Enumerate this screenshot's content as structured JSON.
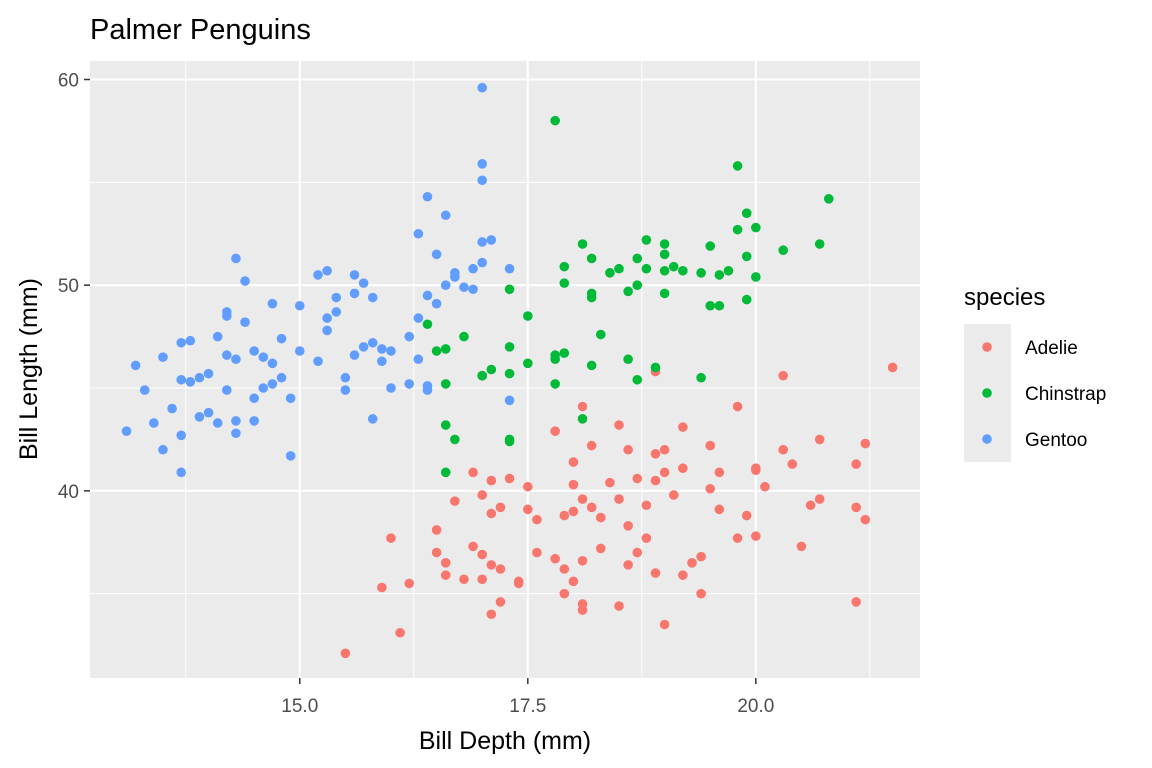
{
  "chart_data": {
    "type": "scatter",
    "title": "Palmer Penguins",
    "xlabel": "Bill Depth (mm)",
    "ylabel": "Bill Length (mm)",
    "xlim": [
      12.7,
      21.8
    ],
    "ylim": [
      30.9,
      60.9
    ],
    "x_ticks": [
      15.0,
      17.5,
      20.0
    ],
    "x_tick_labels": [
      "15.0",
      "17.5",
      "20.0"
    ],
    "x_minor_ticks": [
      13.75,
      16.25,
      18.75,
      21.25
    ],
    "y_ticks": [
      40,
      50,
      60
    ],
    "y_tick_labels": [
      "40",
      "50",
      "60"
    ],
    "y_minor_ticks": [
      35,
      45,
      55
    ],
    "panel_background": "#ebebeb",
    "grid": true,
    "legend": {
      "title": "species",
      "position": "right",
      "entries": [
        {
          "name": "Adelie",
          "color": "#f8766d"
        },
        {
          "name": "Chinstrap",
          "color": "#00ba38"
        },
        {
          "name": "Gentoo",
          "color": "#619cff"
        }
      ]
    },
    "series": [
      {
        "name": "Adelie",
        "color": "#f8766d",
        "points": [
          [
            15.5,
            32.1
          ],
          [
            16.1,
            33.1
          ],
          [
            17.1,
            34.0
          ],
          [
            17.2,
            34.6
          ],
          [
            18.1,
            34.5
          ],
          [
            18.5,
            34.4
          ],
          [
            19.0,
            33.5
          ],
          [
            19.4,
            35.0
          ],
          [
            21.1,
            34.6
          ],
          [
            15.9,
            35.3
          ],
          [
            16.2,
            35.5
          ],
          [
            16.6,
            35.9
          ],
          [
            16.8,
            35.7
          ],
          [
            17.0,
            35.7
          ],
          [
            17.4,
            35.5
          ],
          [
            17.4,
            35.6
          ],
          [
            17.9,
            35.0
          ],
          [
            18.0,
            35.6
          ],
          [
            18.1,
            34.2
          ],
          [
            16.0,
            37.7
          ],
          [
            16.5,
            38.1
          ],
          [
            16.5,
            37.0
          ],
          [
            16.6,
            36.5
          ],
          [
            16.9,
            37.3
          ],
          [
            17.0,
            36.9
          ],
          [
            17.1,
            36.4
          ],
          [
            17.2,
            36.2
          ],
          [
            17.1,
            38.9
          ],
          [
            17.6,
            37.0
          ],
          [
            17.8,
            36.7
          ],
          [
            17.9,
            36.2
          ],
          [
            18.1,
            36.6
          ],
          [
            18.3,
            37.2
          ],
          [
            18.6,
            36.4
          ],
          [
            18.7,
            37.0
          ],
          [
            18.8,
            37.7
          ],
          [
            18.9,
            36.0
          ],
          [
            19.2,
            35.9
          ],
          [
            19.3,
            36.5
          ],
          [
            19.4,
            36.8
          ],
          [
            19.8,
            37.7
          ],
          [
            20.0,
            37.8
          ],
          [
            20.5,
            37.3
          ],
          [
            16.7,
            39.5
          ],
          [
            16.9,
            40.9
          ],
          [
            17.0,
            39.8
          ],
          [
            17.1,
            40.5
          ],
          [
            17.2,
            39.2
          ],
          [
            17.3,
            40.6
          ],
          [
            17.5,
            40.2
          ],
          [
            17.5,
            39.1
          ],
          [
            17.6,
            38.6
          ],
          [
            17.9,
            38.8
          ],
          [
            18.0,
            39.0
          ],
          [
            18.0,
            40.3
          ],
          [
            18.1,
            39.6
          ],
          [
            18.2,
            39.2
          ],
          [
            18.3,
            38.7
          ],
          [
            18.4,
            40.4
          ],
          [
            18.5,
            39.6
          ],
          [
            18.6,
            38.3
          ],
          [
            18.7,
            40.6
          ],
          [
            18.8,
            39.3
          ],
          [
            18.9,
            40.5
          ],
          [
            19.0,
            40.9
          ],
          [
            19.1,
            39.8
          ],
          [
            19.2,
            41.1
          ],
          [
            19.5,
            40.1
          ],
          [
            19.6,
            39.1
          ],
          [
            19.9,
            38.8
          ],
          [
            20.0,
            41.0
          ],
          [
            20.1,
            40.2
          ],
          [
            20.6,
            39.3
          ],
          [
            20.7,
            39.6
          ],
          [
            21.1,
            39.2
          ],
          [
            21.2,
            38.6
          ],
          [
            17.8,
            42.9
          ],
          [
            18.0,
            41.4
          ],
          [
            18.2,
            42.2
          ],
          [
            18.5,
            43.2
          ],
          [
            18.6,
            42.0
          ],
          [
            18.9,
            41.8
          ],
          [
            19.0,
            42.0
          ],
          [
            19.2,
            43.1
          ],
          [
            19.5,
            42.2
          ],
          [
            19.6,
            40.9
          ],
          [
            19.8,
            44.1
          ],
          [
            20.0,
            41.1
          ],
          [
            20.3,
            42.0
          ],
          [
            20.4,
            41.3
          ],
          [
            20.7,
            42.5
          ],
          [
            21.1,
            41.3
          ],
          [
            21.2,
            42.3
          ],
          [
            21.5,
            46.0
          ],
          [
            20.3,
            45.6
          ],
          [
            18.1,
            44.1
          ],
          [
            18.9,
            45.8
          ]
        ]
      },
      {
        "name": "Chinstrap",
        "color": "#00ba38",
        "points": [
          [
            16.4,
            48.1
          ],
          [
            16.5,
            46.8
          ],
          [
            16.6,
            46.9
          ],
          [
            16.6,
            45.2
          ],
          [
            16.6,
            43.2
          ],
          [
            16.6,
            40.9
          ],
          [
            16.7,
            42.5
          ],
          [
            16.8,
            47.5
          ],
          [
            17.0,
            45.6
          ],
          [
            17.0,
            45.6
          ],
          [
            17.1,
            45.9
          ],
          [
            17.3,
            49.8
          ],
          [
            17.3,
            47.0
          ],
          [
            17.3,
            45.7
          ],
          [
            17.3,
            42.5
          ],
          [
            17.3,
            42.4
          ],
          [
            17.5,
            48.5
          ],
          [
            17.5,
            46.2
          ],
          [
            17.8,
            58.0
          ],
          [
            17.8,
            46.6
          ],
          [
            17.8,
            46.4
          ],
          [
            17.8,
            45.2
          ],
          [
            17.9,
            50.9
          ],
          [
            17.9,
            50.1
          ],
          [
            17.9,
            46.7
          ],
          [
            18.1,
            52.0
          ],
          [
            18.1,
            43.5
          ],
          [
            18.2,
            51.3
          ],
          [
            18.2,
            49.6
          ],
          [
            18.2,
            49.4
          ],
          [
            18.2,
            46.1
          ],
          [
            18.3,
            47.6
          ],
          [
            18.4,
            50.6
          ],
          [
            18.5,
            50.8
          ],
          [
            18.6,
            49.7
          ],
          [
            18.6,
            46.4
          ],
          [
            18.7,
            51.3
          ],
          [
            18.7,
            50.0
          ],
          [
            18.7,
            45.4
          ],
          [
            18.8,
            52.2
          ],
          [
            18.8,
            50.8
          ],
          [
            18.9,
            46.0
          ],
          [
            19.0,
            52.0
          ],
          [
            19.0,
            51.5
          ],
          [
            19.0,
            50.7
          ],
          [
            19.0,
            49.6
          ],
          [
            19.1,
            50.9
          ],
          [
            19.2,
            50.7
          ],
          [
            19.4,
            50.6
          ],
          [
            19.4,
            45.5
          ],
          [
            19.5,
            51.9
          ],
          [
            19.5,
            49.0
          ],
          [
            19.6,
            50.5
          ],
          [
            19.6,
            49.0
          ],
          [
            19.7,
            50.7
          ],
          [
            19.8,
            55.8
          ],
          [
            19.8,
            52.7
          ],
          [
            19.9,
            53.5
          ],
          [
            19.9,
            51.4
          ],
          [
            19.9,
            49.3
          ],
          [
            20.0,
            52.8
          ],
          [
            20.0,
            50.4
          ],
          [
            20.3,
            51.7
          ],
          [
            20.7,
            52.0
          ],
          [
            20.8,
            54.2
          ]
        ]
      },
      {
        "name": "Gentoo",
        "color": "#619cff",
        "points": [
          [
            13.1,
            42.9
          ],
          [
            13.2,
            46.1
          ],
          [
            13.3,
            44.9
          ],
          [
            13.4,
            43.3
          ],
          [
            13.5,
            46.5
          ],
          [
            13.5,
            42.0
          ],
          [
            13.6,
            44.0
          ],
          [
            13.7,
            47.2
          ],
          [
            13.7,
            45.4
          ],
          [
            13.7,
            42.7
          ],
          [
            13.7,
            40.9
          ],
          [
            13.8,
            47.3
          ],
          [
            13.8,
            45.3
          ],
          [
            13.9,
            45.5
          ],
          [
            13.9,
            43.6
          ],
          [
            14.0,
            45.7
          ],
          [
            14.0,
            43.8
          ],
          [
            14.1,
            43.3
          ],
          [
            14.1,
            47.5
          ],
          [
            14.2,
            48.7
          ],
          [
            14.2,
            48.5
          ],
          [
            14.2,
            46.6
          ],
          [
            14.2,
            44.9
          ],
          [
            14.3,
            51.3
          ],
          [
            14.3,
            46.4
          ],
          [
            14.3,
            43.4
          ],
          [
            14.3,
            42.8
          ],
          [
            14.4,
            50.2
          ],
          [
            14.4,
            48.2
          ],
          [
            14.5,
            46.8
          ],
          [
            14.5,
            44.5
          ],
          [
            14.5,
            43.4
          ],
          [
            14.6,
            46.5
          ],
          [
            14.6,
            45.0
          ],
          [
            14.7,
            49.1
          ],
          [
            14.7,
            46.2
          ],
          [
            14.7,
            45.2
          ],
          [
            14.8,
            47.4
          ],
          [
            14.8,
            45.5
          ],
          [
            14.9,
            44.5
          ],
          [
            14.9,
            41.7
          ],
          [
            15.0,
            49.0
          ],
          [
            15.0,
            46.8
          ],
          [
            15.2,
            46.3
          ],
          [
            15.3,
            47.8
          ],
          [
            15.3,
            50.7
          ],
          [
            15.3,
            48.4
          ],
          [
            15.4,
            49.4
          ],
          [
            15.4,
            48.7
          ],
          [
            15.5,
            45.5
          ],
          [
            15.5,
            44.9
          ],
          [
            15.6,
            50.5
          ],
          [
            15.6,
            49.6
          ],
          [
            15.6,
            46.6
          ],
          [
            15.7,
            50.1
          ],
          [
            15.7,
            47.0
          ],
          [
            15.8,
            49.4
          ],
          [
            15.8,
            43.5
          ],
          [
            15.9,
            46.9
          ],
          [
            15.9,
            46.3
          ],
          [
            16.0,
            45.0
          ],
          [
            16.2,
            47.5
          ],
          [
            16.3,
            52.5
          ],
          [
            16.3,
            48.4
          ],
          [
            16.4,
            49.5
          ],
          [
            16.4,
            44.9
          ],
          [
            16.5,
            49.1
          ],
          [
            16.6,
            50.0
          ],
          [
            16.7,
            50.4
          ],
          [
            16.8,
            49.9
          ],
          [
            16.9,
            50.8
          ],
          [
            17.0,
            51.1
          ],
          [
            16.2,
            45.2
          ],
          [
            16.4,
            54.3
          ],
          [
            16.6,
            53.4
          ],
          [
            16.7,
            50.6
          ],
          [
            17.0,
            55.1
          ],
          [
            15.2,
            50.5
          ],
          [
            15.8,
            47.2
          ],
          [
            16.0,
            46.8
          ],
          [
            16.3,
            46.4
          ],
          [
            16.5,
            51.5
          ],
          [
            17.0,
            59.6
          ],
          [
            17.0,
            55.9
          ],
          [
            17.0,
            52.1
          ],
          [
            17.1,
            52.2
          ],
          [
            17.3,
            50.8
          ],
          [
            17.3,
            44.4
          ],
          [
            16.9,
            49.8
          ],
          [
            16.4,
            45.1
          ]
        ]
      }
    ]
  }
}
